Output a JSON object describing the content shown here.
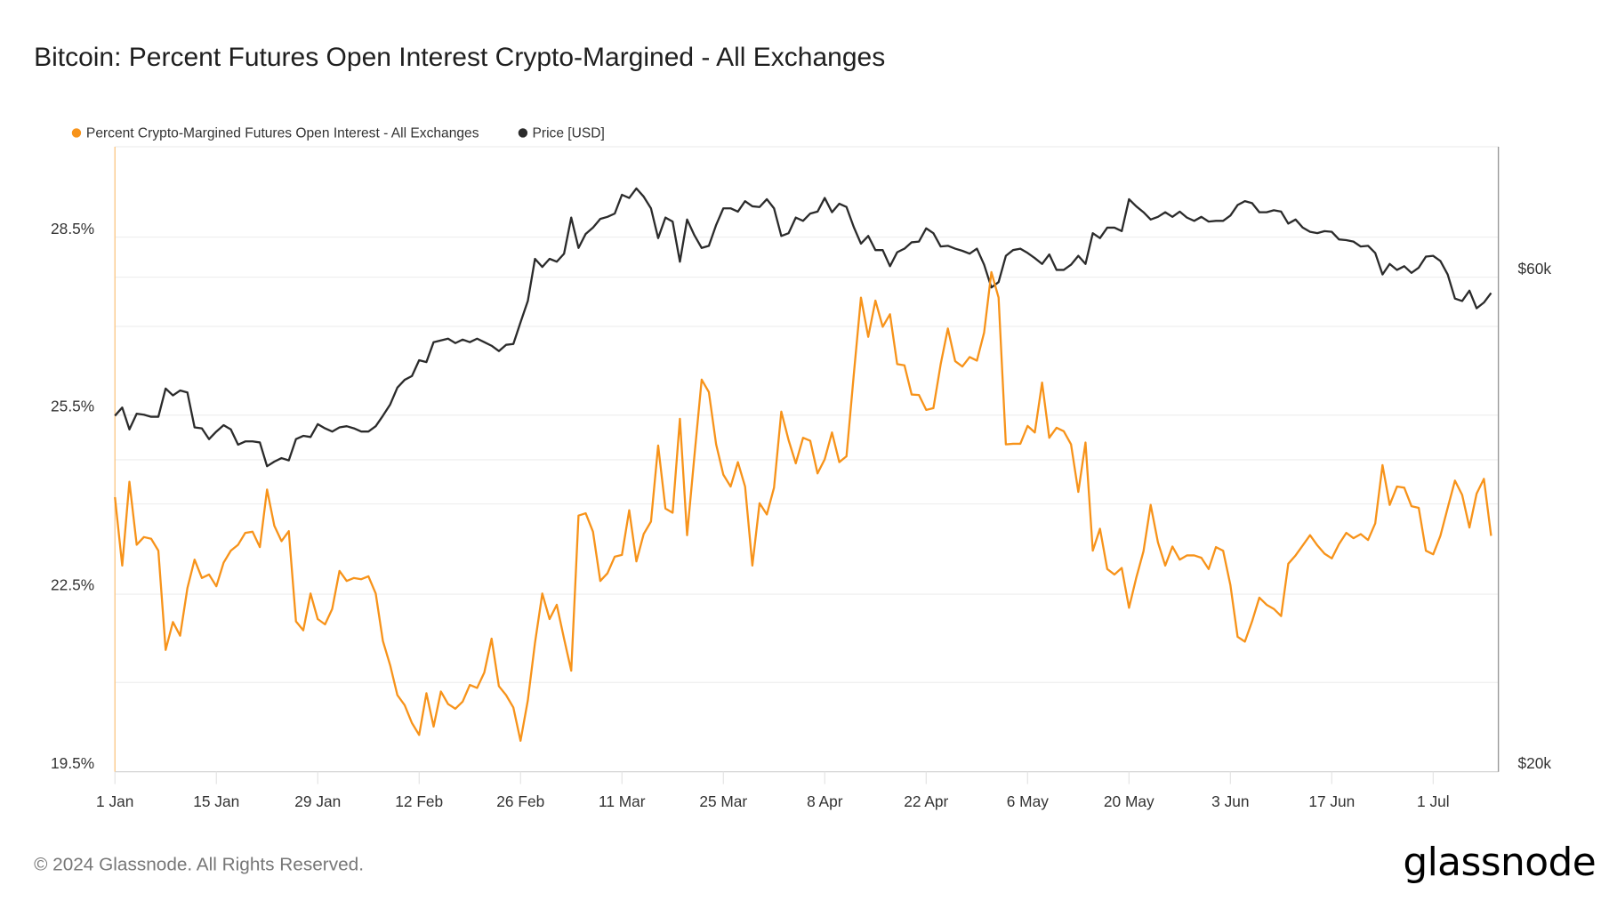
{
  "header": {
    "title": "Bitcoin: Percent Futures Open Interest Crypto-Margined - All Exchanges"
  },
  "footer": {
    "copyright": "© 2024 Glassnode. All Rights Reserved.",
    "logo": "glassnode"
  },
  "colors": {
    "oi": "#f7931a",
    "price": "#2b2b2b",
    "grid": "#eeeeee",
    "axis": "#cccccc"
  },
  "chart_data": {
    "type": "line",
    "title": "Bitcoin: Percent Futures Open Interest Crypto-Margined - All Exchanges",
    "legend_position": "top-left",
    "grid": true,
    "xlim": [
      "2024-01-01",
      "2024-07-10"
    ],
    "x_ticks": [
      {
        "date": "2024-01-01",
        "label": "1 Jan"
      },
      {
        "date": "2024-01-15",
        "label": "15 Jan"
      },
      {
        "date": "2024-01-29",
        "label": "29 Jan"
      },
      {
        "date": "2024-02-12",
        "label": "12 Feb"
      },
      {
        "date": "2024-02-26",
        "label": "26 Feb"
      },
      {
        "date": "2024-03-11",
        "label": "11 Mar"
      },
      {
        "date": "2024-03-25",
        "label": "25 Mar"
      },
      {
        "date": "2024-04-08",
        "label": "8 Apr"
      },
      {
        "date": "2024-04-22",
        "label": "22 Apr"
      },
      {
        "date": "2024-05-06",
        "label": "6 May"
      },
      {
        "date": "2024-05-20",
        "label": "20 May"
      },
      {
        "date": "2024-06-03",
        "label": "3 Jun"
      },
      {
        "date": "2024-06-17",
        "label": "17 Jun"
      },
      {
        "date": "2024-07-01",
        "label": "1 Jul"
      }
    ],
    "y_left": {
      "scale": "linear",
      "range": [
        19.5,
        28.5
      ],
      "ticks": [
        "28.5%",
        "25.5%",
        "22.5%",
        "19.5%"
      ]
    },
    "y_right": {
      "scale": "log",
      "range": [
        20000,
        60000
      ],
      "ticks": [
        "$60k",
        "$20k"
      ]
    },
    "x": [
      "2024-01-01",
      "2024-01-02",
      "2024-01-03",
      "2024-01-04",
      "2024-01-05",
      "2024-01-06",
      "2024-01-07",
      "2024-01-08",
      "2024-01-09",
      "2024-01-10",
      "2024-01-11",
      "2024-01-12",
      "2024-01-13",
      "2024-01-14",
      "2024-01-15",
      "2024-01-16",
      "2024-01-17",
      "2024-01-18",
      "2024-01-19",
      "2024-01-20",
      "2024-01-21",
      "2024-01-22",
      "2024-01-23",
      "2024-01-24",
      "2024-01-25",
      "2024-01-26",
      "2024-01-27",
      "2024-01-28",
      "2024-01-29",
      "2024-01-30",
      "2024-01-31",
      "2024-02-01",
      "2024-02-02",
      "2024-02-03",
      "2024-02-04",
      "2024-02-05",
      "2024-02-06",
      "2024-02-07",
      "2024-02-08",
      "2024-02-09",
      "2024-02-10",
      "2024-02-11",
      "2024-02-12",
      "2024-02-13",
      "2024-02-14",
      "2024-02-15",
      "2024-02-16",
      "2024-02-17",
      "2024-02-18",
      "2024-02-19",
      "2024-02-20",
      "2024-02-21",
      "2024-02-22",
      "2024-02-23",
      "2024-02-24",
      "2024-02-25",
      "2024-02-26",
      "2024-02-27",
      "2024-02-28",
      "2024-02-29",
      "2024-03-01",
      "2024-03-02",
      "2024-03-03",
      "2024-03-04",
      "2024-03-05",
      "2024-03-06",
      "2024-03-07",
      "2024-03-08",
      "2024-03-09",
      "2024-03-10",
      "2024-03-11",
      "2024-03-12",
      "2024-03-13",
      "2024-03-14",
      "2024-03-15",
      "2024-03-16",
      "2024-03-17",
      "2024-03-18",
      "2024-03-19",
      "2024-03-20",
      "2024-03-21",
      "2024-03-22",
      "2024-03-23",
      "2024-03-24",
      "2024-03-25",
      "2024-03-26",
      "2024-03-27",
      "2024-03-28",
      "2024-03-29",
      "2024-03-30",
      "2024-03-31",
      "2024-04-01",
      "2024-04-02",
      "2024-04-03",
      "2024-04-04",
      "2024-04-05",
      "2024-04-06",
      "2024-04-07",
      "2024-04-08",
      "2024-04-09",
      "2024-04-10",
      "2024-04-11",
      "2024-04-12",
      "2024-04-13",
      "2024-04-14",
      "2024-04-15",
      "2024-04-16",
      "2024-04-17",
      "2024-04-18",
      "2024-04-19",
      "2024-04-20",
      "2024-04-21",
      "2024-04-22",
      "2024-04-23",
      "2024-04-24",
      "2024-04-25",
      "2024-04-26",
      "2024-04-27",
      "2024-04-28",
      "2024-04-29",
      "2024-04-30",
      "2024-05-01",
      "2024-05-02",
      "2024-05-03",
      "2024-05-04",
      "2024-05-05",
      "2024-05-06",
      "2024-05-07",
      "2024-05-08",
      "2024-05-09",
      "2024-05-10",
      "2024-05-11",
      "2024-05-12",
      "2024-05-13",
      "2024-05-14",
      "2024-05-15",
      "2024-05-16",
      "2024-05-17",
      "2024-05-18",
      "2024-05-19",
      "2024-05-20",
      "2024-05-21",
      "2024-05-22",
      "2024-05-23",
      "2024-05-24",
      "2024-05-25",
      "2024-05-26",
      "2024-05-27",
      "2024-05-28",
      "2024-05-29",
      "2024-05-30",
      "2024-05-31",
      "2024-06-01",
      "2024-06-02",
      "2024-06-03",
      "2024-06-04",
      "2024-06-05",
      "2024-06-06",
      "2024-06-07",
      "2024-06-08",
      "2024-06-09",
      "2024-06-10",
      "2024-06-11",
      "2024-06-12",
      "2024-06-13",
      "2024-06-14",
      "2024-06-15",
      "2024-06-16",
      "2024-06-17",
      "2024-06-18",
      "2024-06-19",
      "2024-06-20",
      "2024-06-21",
      "2024-06-22",
      "2024-06-23",
      "2024-06-24",
      "2024-06-25",
      "2024-06-26",
      "2024-06-27",
      "2024-06-28",
      "2024-06-29",
      "2024-06-30",
      "2024-07-01",
      "2024-07-02",
      "2024-07-03",
      "2024-07-04",
      "2024-07-05",
      "2024-07-06",
      "2024-07-07",
      "2024-07-08",
      "2024-07-09"
    ],
    "series": [
      {
        "name": "Percent Crypto-Margined Futures Open Interest - All Exchanges",
        "axis": "left",
        "unit": "%",
        "color": "#f7931a",
        "values": [
          24.0,
          22.85,
          24.26,
          23.2,
          23.33,
          23.3,
          23.1,
          21.43,
          21.9,
          21.67,
          22.47,
          22.95,
          22.64,
          22.7,
          22.5,
          22.9,
          23.1,
          23.2,
          23.4,
          23.42,
          23.16,
          24.13,
          23.52,
          23.26,
          23.43,
          21.91,
          21.76,
          22.38,
          21.95,
          21.86,
          22.12,
          22.76,
          22.59,
          22.64,
          22.62,
          22.67,
          22.38,
          21.58,
          21.17,
          20.67,
          20.5,
          20.2,
          20.0,
          20.7,
          20.14,
          20.73,
          20.52,
          20.44,
          20.56,
          20.84,
          20.79,
          21.05,
          21.62,
          20.82,
          20.67,
          20.46,
          19.9,
          20.58,
          21.55,
          22.38,
          21.95,
          22.19,
          21.62,
          21.08,
          23.69,
          23.73,
          23.42,
          22.59,
          22.72,
          23.0,
          23.03,
          23.78,
          22.92,
          23.38,
          23.59,
          24.87,
          23.81,
          23.74,
          25.32,
          23.36,
          24.69,
          25.98,
          25.77,
          24.89,
          24.38,
          24.18,
          24.59,
          24.18,
          22.85,
          23.9,
          23.71,
          24.16,
          25.44,
          24.96,
          24.57,
          25.0,
          24.95,
          24.4,
          24.64,
          25.09,
          24.59,
          24.69,
          26.06,
          27.36,
          26.7,
          27.31,
          26.87,
          27.08,
          26.24,
          26.22,
          25.73,
          25.72,
          25.47,
          25.5,
          26.24,
          26.84,
          26.29,
          26.2,
          26.36,
          26.3,
          26.77,
          27.79,
          27.36,
          24.89,
          24.9,
          24.9,
          25.2,
          25.09,
          25.93,
          25.0,
          25.17,
          25.11,
          24.89,
          24.09,
          24.92,
          23.1,
          23.47,
          22.79,
          22.7,
          22.81,
          22.14,
          22.64,
          23.09,
          23.87,
          23.24,
          22.85,
          23.17,
          22.95,
          23.02,
          23.02,
          22.98,
          22.79,
          23.16,
          23.1,
          22.52,
          21.65,
          21.57,
          21.91,
          22.31,
          22.19,
          22.12,
          22.0,
          22.88,
          23.02,
          23.19,
          23.36,
          23.19,
          23.05,
          22.97,
          23.21,
          23.4,
          23.31,
          23.38,
          23.28,
          23.56,
          24.54,
          23.87,
          24.18,
          24.16,
          23.85,
          23.82,
          23.1,
          23.04,
          23.35,
          23.82,
          24.28,
          24.04,
          23.49,
          24.06,
          24.31,
          23.35
        ]
      },
      {
        "name": "Price [USD]",
        "axis": "right",
        "unit": "USD (thousands)",
        "color": "#2b2b2b",
        "values": [
          43.4,
          44.2,
          42.1,
          43.6,
          43.5,
          43.3,
          43.3,
          46.1,
          45.4,
          45.9,
          45.7,
          42.3,
          42.2,
          41.2,
          41.9,
          42.5,
          42.1,
          40.7,
          41.0,
          41.0,
          40.9,
          38.8,
          39.2,
          39.5,
          39.3,
          41.2,
          41.5,
          41.4,
          42.6,
          42.2,
          41.9,
          42.3,
          42.4,
          42.2,
          41.9,
          41.9,
          42.4,
          43.4,
          44.5,
          46.2,
          47.0,
          47.4,
          49.1,
          48.9,
          51.1,
          51.3,
          51.5,
          51.0,
          51.4,
          51.1,
          51.5,
          51.1,
          50.7,
          50.1,
          50.8,
          50.9,
          53.4,
          56.0,
          61.5,
          60.4,
          61.5,
          61.1,
          62.2,
          67.4,
          63.0,
          65.0,
          65.9,
          67.2,
          67.5,
          68.0,
          70.9,
          70.4,
          71.9,
          70.6,
          68.8,
          64.4,
          67.4,
          66.8,
          61.1,
          67.1,
          64.8,
          63.0,
          63.3,
          66.3,
          68.8,
          68.8,
          68.3,
          69.9,
          69.1,
          69.0,
          70.2,
          68.8,
          64.7,
          65.1,
          67.4,
          66.9,
          68.0,
          68.3,
          70.4,
          68.2,
          69.5,
          69.0,
          66.0,
          63.6,
          64.7,
          62.7,
          62.7,
          60.5,
          62.4,
          62.9,
          63.8,
          63.9,
          65.8,
          65.1,
          63.2,
          63.3,
          62.9,
          62.6,
          62.2,
          62.9,
          60.7,
          57.7,
          58.4,
          61.9,
          62.7,
          62.9,
          62.3,
          61.6,
          60.8,
          62.1,
          60.0,
          60.0,
          60.7,
          61.9,
          60.8,
          65.1,
          64.4,
          65.9,
          65.9,
          65.4,
          70.2,
          69.1,
          68.2,
          67.1,
          67.5,
          68.2,
          67.5,
          68.3,
          67.4,
          66.9,
          67.5,
          66.8,
          66.9,
          66.9,
          67.7,
          69.3,
          69.9,
          69.6,
          68.2,
          68.2,
          68.5,
          68.3,
          66.5,
          67.1,
          65.9,
          65.3,
          65.1,
          65.4,
          65.3,
          64.2,
          64.1,
          63.9,
          63.2,
          63.3,
          62.3,
          59.4,
          60.8,
          60.0,
          60.5,
          59.6,
          60.3,
          61.8,
          61.9,
          61.2,
          59.4,
          56.3,
          56.0,
          57.3,
          55.1,
          55.8,
          57.0
        ]
      }
    ]
  }
}
